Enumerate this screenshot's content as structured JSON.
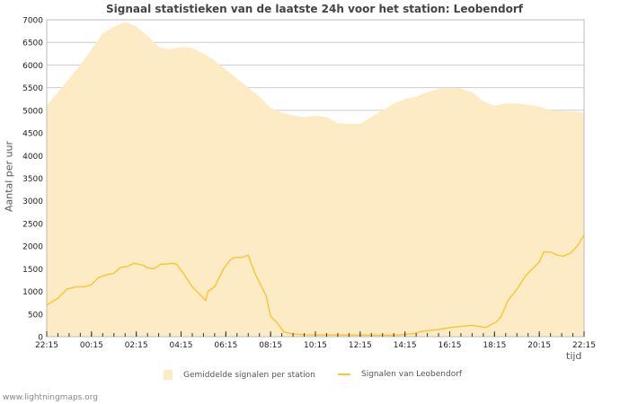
{
  "chart_data": {
    "type": "area",
    "title": "Signaal statistieken van de laatste 24h voor het station: Leobendorf",
    "xlabel": "tijd",
    "ylabel": "Aantal per uur",
    "xlim": [
      0,
      24
    ],
    "ylim": [
      0,
      7000
    ],
    "x_unit": "hours since 22:15",
    "x_ticks": [
      "22:15",
      "00:15",
      "02:15",
      "04:15",
      "06:15",
      "08:15",
      "10:15",
      "12:15",
      "14:15",
      "16:15",
      "18:15",
      "20:15",
      "22:15"
    ],
    "y_ticks": [
      0,
      500,
      1000,
      1500,
      2000,
      2500,
      3000,
      3500,
      4000,
      4500,
      5000,
      5500,
      6000,
      6500,
      7000
    ],
    "grid": true,
    "legend_position": "bottom",
    "series": [
      {
        "name": "Gemiddelde signalen per station",
        "kind": "area",
        "color": "#fdebc6",
        "x": [
          0,
          0.5,
          1,
          1.5,
          2,
          2.5,
          3,
          3.5,
          4,
          4.5,
          5,
          5.5,
          6,
          6.5,
          7,
          7.5,
          8,
          8.5,
          9,
          9.5,
          10,
          10.5,
          11,
          11.5,
          12,
          12.5,
          13,
          13.5,
          14,
          14.5,
          15,
          15.5,
          16,
          16.5,
          17,
          17.5,
          18,
          18.5,
          19,
          19.5,
          20,
          20.5,
          21,
          21.5,
          22,
          22.5,
          23,
          23.5,
          24
        ],
        "values": [
          5100,
          5400,
          5700,
          6000,
          6350,
          6700,
          6850,
          6950,
          6850,
          6650,
          6400,
          6350,
          6400,
          6380,
          6250,
          6100,
          5900,
          5700,
          5500,
          5300,
          5050,
          4950,
          4880,
          4850,
          4880,
          4850,
          4720,
          4700,
          4700,
          4850,
          5000,
          5150,
          5250,
          5300,
          5400,
          5480,
          5500,
          5480,
          5400,
          5200,
          5100,
          5150,
          5150,
          5120,
          5080,
          5000,
          4980,
          4970,
          4950
        ]
      },
      {
        "name": "Signalen van Leobendorf",
        "kind": "line",
        "color": "#f9c838",
        "x": [
          0,
          0.5,
          0.9,
          1.3,
          1.7,
          2,
          2.3,
          2.7,
          3,
          3.3,
          3.6,
          3.9,
          4.3,
          4.5,
          4.8,
          5.1,
          5.3,
          5.6,
          5.8,
          6.1,
          6.5,
          6.8,
          7.1,
          7.2,
          7.5,
          7.9,
          8.2,
          8.4,
          8.7,
          9,
          9.3,
          9.6,
          9.8,
          10,
          10.3,
          10.6,
          11,
          11.6,
          15.6,
          16.4,
          16.8,
          17.4,
          18,
          18.6,
          19,
          19.6,
          20.1,
          20.3,
          20.6,
          21,
          21.4,
          21.8,
          22,
          22.2,
          22.5,
          22.8,
          23.1,
          23.4,
          23.7,
          24
        ],
        "values": [
          700,
          850,
          1050,
          1100,
          1100,
          1150,
          1300,
          1370,
          1400,
          1530,
          1550,
          1620,
          1580,
          1520,
          1500,
          1600,
          1600,
          1620,
          1600,
          1400,
          1100,
          950,
          800,
          1000,
          1100,
          1500,
          1700,
          1750,
          1750,
          1800,
          1400,
          1100,
          900,
          450,
          300,
          100,
          60,
          40,
          30,
          70,
          120,
          150,
          200,
          230,
          250,
          200,
          330,
          450,
          800,
          1050,
          1350,
          1550,
          1650,
          1870,
          1870,
          1800,
          1780,
          1850,
          2000,
          2250
        ]
      }
    ]
  },
  "credit": "www.lightningmaps.org"
}
